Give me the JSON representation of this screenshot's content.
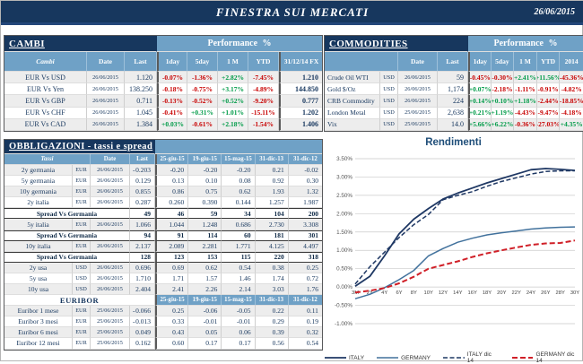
{
  "header": {
    "title": "FINESTRA SUI MERCATI",
    "date": "26/06/2015"
  },
  "colors": {
    "navy": "#17375E",
    "steel": "#6FA1C6",
    "positive": "#009B48",
    "negative": "#C80000",
    "stripe": "#EDEDED",
    "italy_line": "#1F3864",
    "germany_line": "#41719C",
    "germany_dic14_line": "#D02028"
  },
  "cambi": {
    "title": "CAMBI",
    "perf_header": "Performance  %",
    "columns": [
      "Cambi",
      "Date",
      "Last",
      "1day",
      "5day",
      "1 M",
      "YTD",
      "31/12/14 FX"
    ],
    "rows": [
      {
        "name": "EUR Vs USD",
        "date": "26/06/2015",
        "last": "1.120",
        "perf": [
          "-0.07%",
          "-1.36%",
          "+2.82%",
          "-7.45%"
        ],
        "fx": "1.210",
        "shade": true
      },
      {
        "name": "EUR Vs Yen",
        "date": "26/06/2015",
        "last": "138.250",
        "perf": [
          "-0.18%",
          "-0.75%",
          "+3.17%",
          "-4.89%"
        ],
        "fx": "144.850",
        "shade": false
      },
      {
        "name": "EUR Vs GBP",
        "date": "26/06/2015",
        "last": "0.711",
        "perf": [
          "-0.13%",
          "-0.52%",
          "+0.52%",
          "-9.20%"
        ],
        "fx": "0.777",
        "shade": true
      },
      {
        "name": "EUR Vs CHF",
        "date": "26/06/2015",
        "last": "1.045",
        "perf": [
          "-0.41%",
          "+0.31%",
          "+1.01%",
          "-15.11%"
        ],
        "fx": "1.202",
        "shade": false
      },
      {
        "name": "EUR Vs CAD",
        "date": "26/06/2015",
        "last": "1.384",
        "perf": [
          "+0.03%",
          "-0.61%",
          "+2.18%",
          "-1.54%"
        ],
        "fx": "1.406",
        "shade": true
      }
    ]
  },
  "commodities": {
    "title": "COMMODITIES",
    "perf_header": "Performance  %",
    "columns": [
      "",
      "Date",
      "Last",
      "1day",
      "5day",
      "1 M",
      "YTD",
      "2014"
    ],
    "rows": [
      {
        "name": "Crude Oil WTI",
        "ccy": "USD",
        "date": "26/06/2015",
        "last": "59",
        "perf": [
          "-0.45%",
          "-0.30%",
          "+2.41%",
          "+11.56%",
          "-45.36%"
        ],
        "shade": true
      },
      {
        "name": "Gold $/Oz",
        "ccy": "USD",
        "date": "26/06/2015",
        "last": "1,174",
        "perf": [
          "+0.07%",
          "-2.18%",
          "-1.11%",
          "-0.91%",
          "-4.82%"
        ],
        "shade": false
      },
      {
        "name": "CRB Commodity",
        "ccy": "USD",
        "date": "26/06/2015",
        "last": "224",
        "perf": [
          "+0.14%",
          "+0.10%",
          "+1.18%",
          "-2.44%",
          "-18.85%"
        ],
        "shade": true
      },
      {
        "name": "London Metal",
        "ccy": "USD",
        "date": "25/06/2015",
        "last": "2,638",
        "perf": [
          "+0.21%",
          "+1.19%",
          "-4.43%",
          "-9.47%",
          "-4.18%"
        ],
        "shade": false
      },
      {
        "name": "Vix",
        "ccy": "USD",
        "date": "25/06/2015",
        "last": "14.0",
        "perf": [
          "+5.66%",
          "+6.22%",
          "-0.36%",
          "-27.03%",
          "+4.35%"
        ],
        "shade": true
      }
    ]
  },
  "obbligazioni": {
    "title": "OBBLIGAZIONI - tassi e spread",
    "columns": [
      "Tassi",
      "Date",
      "Last",
      "25-giu-15",
      "19-giu-15",
      "15-mag-15",
      "31-dic-13",
      "31-dic-12"
    ],
    "rows": [
      {
        "type": "data",
        "name": "2y germania",
        "ccy": "EUR",
        "date": "26/06/2015",
        "sign": "-",
        "last": "0.203",
        "vals": [
          "-0.20",
          "-0.20",
          "-0.20",
          "0.21",
          "-0.02"
        ],
        "shade": true
      },
      {
        "type": "data",
        "name": "5y germania",
        "ccy": "EUR",
        "date": "26/06/2015",
        "sign": "",
        "last": "0.129",
        "vals": [
          "0.13",
          "0.10",
          "0.08",
          "0.92",
          "0.30"
        ],
        "shade": false
      },
      {
        "type": "data",
        "name": "10y germania",
        "ccy": "EUR",
        "date": "26/06/2015",
        "sign": "",
        "last": "0.855",
        "vals": [
          "0.86",
          "0.75",
          "0.62",
          "1.93",
          "1.32"
        ],
        "shade": true
      },
      {
        "type": "data",
        "name": "2y italia",
        "ccy": "EUR",
        "date": "26/06/2015",
        "sign": "",
        "last": "0.287",
        "vals": [
          "0.260",
          "0.390",
          "0.144",
          "1.257",
          "1.987"
        ],
        "shade": false
      },
      {
        "type": "spread",
        "name": "Spread Vs Germania",
        "last": "49",
        "vals": [
          "46",
          "59",
          "34",
          "104",
          "200"
        ]
      },
      {
        "type": "data",
        "name": "5y italia",
        "ccy": "EUR",
        "date": "26/06/2015",
        "sign": "",
        "last": "1.066",
        "vals": [
          "1.044",
          "1.248",
          "0.686",
          "2.730",
          "3.308"
        ],
        "shade": true
      },
      {
        "type": "spread",
        "name": "Spread Vs Germania",
        "last": "94",
        "vals": [
          "91",
          "114",
          "60",
          "181",
          "301"
        ]
      },
      {
        "type": "data",
        "name": "10y italia",
        "ccy": "EUR",
        "date": "26/06/2015",
        "sign": "",
        "last": "2.137",
        "vals": [
          "2.089",
          "2.281",
          "1.771",
          "4.125",
          "4.497"
        ],
        "shade": true
      },
      {
        "type": "spread",
        "name": "Spread Vs Germania",
        "last": "128",
        "vals": [
          "123",
          "153",
          "115",
          "220",
          "318"
        ]
      },
      {
        "type": "data",
        "name": "2y usa",
        "ccy": "USD",
        "date": "26/06/2015",
        "sign": "",
        "last": "0.696",
        "vals": [
          "0.69",
          "0.62",
          "0.54",
          "0.38",
          "0.25"
        ],
        "shade": true
      },
      {
        "type": "data",
        "name": "5y usa",
        "ccy": "USD",
        "date": "26/06/2015",
        "sign": "",
        "last": "1.710",
        "vals": [
          "1.71",
          "1.57",
          "1.46",
          "1.74",
          "0.72"
        ],
        "shade": false
      },
      {
        "type": "data",
        "name": "10y usa",
        "ccy": "USD",
        "date": "26/06/2015",
        "sign": "",
        "last": "2.404",
        "vals": [
          "2.41",
          "2.26",
          "2.14",
          "3.03",
          "1.76"
        ],
        "shade": true
      }
    ]
  },
  "euribor": {
    "title": "EURIBOR",
    "columns": [
      "25-giu-15",
      "19-giu-15",
      "15-mag-15",
      "31-dic-13",
      "31-dic-12"
    ],
    "rows": [
      {
        "name": "Euribor 1 mese",
        "ccy": "EUR",
        "date": "25/06/2015",
        "sign": "-",
        "last": "0.066",
        "vals": [
          "0.25",
          "-0.06",
          "-0.05",
          "0.22",
          "0.11"
        ],
        "shade": true
      },
      {
        "name": "Euribor 3 mesi",
        "ccy": "EUR",
        "date": "25/06/2015",
        "sign": "-",
        "last": "0.013",
        "vals": [
          "0.33",
          "-0.01",
          "-0.01",
          "0.29",
          "0.19"
        ],
        "shade": false
      },
      {
        "name": "Euribor 6 mesi",
        "ccy": "EUR",
        "date": "25/06/2015",
        "sign": "",
        "last": "0.049",
        "vals": [
          "0.43",
          "0.05",
          "0.06",
          "0.39",
          "0.32"
        ],
        "shade": true
      },
      {
        "name": "Euribor 12 mesi",
        "ccy": "EUR",
        "date": "25/06/2015",
        "sign": "",
        "last": "0.162",
        "vals": [
          "0.60",
          "0.17",
          "0.17",
          "0.56",
          "0.54"
        ],
        "shade": false
      }
    ]
  },
  "chart_data": {
    "type": "line",
    "title": "Rendimenti",
    "categories": [
      "3M",
      "2Y",
      "4Y",
      "6Y",
      "8Y",
      "10Y",
      "12Y",
      "14Y",
      "16Y",
      "18Y",
      "20Y",
      "22Y",
      "24Y",
      "26Y",
      "28Y",
      "30Y"
    ],
    "ylim": [
      -1.0,
      3.5
    ],
    "yticks": [
      "3.50%",
      "3.00%",
      "2.50%",
      "2.00%",
      "1.50%",
      "1.00%",
      "0.50%",
      "0.00%",
      "-0.50%",
      "-1.00%"
    ],
    "grid": true,
    "legend_position": "bottom",
    "series": [
      {
        "name": "ITALY",
        "color": "#1F3864",
        "dash": "",
        "width": 1.8,
        "values": [
          0.02,
          0.29,
          0.85,
          1.45,
          1.85,
          2.14,
          2.4,
          2.56,
          2.7,
          2.84,
          2.96,
          3.08,
          3.2,
          3.23,
          3.21,
          3.18
        ]
      },
      {
        "name": "GERMANY",
        "color": "#41719C",
        "dash": "",
        "width": 1.5,
        "values": [
          -0.32,
          -0.2,
          -0.02,
          0.2,
          0.45,
          0.85,
          1.05,
          1.22,
          1.33,
          1.42,
          1.48,
          1.53,
          1.58,
          1.61,
          1.63,
          1.64
        ]
      },
      {
        "name": "ITALY dic 14",
        "color": "#1F3864",
        "dash": "5,2.5",
        "width": 1.5,
        "values": [
          0.08,
          0.55,
          0.95,
          1.35,
          1.7,
          1.98,
          2.38,
          2.5,
          2.6,
          2.75,
          2.88,
          2.98,
          3.08,
          3.15,
          3.17,
          3.17
        ]
      },
      {
        "name": "GERMANY dic 14",
        "color": "#D02028",
        "dash": "6,3",
        "width": 2,
        "values": [
          -0.15,
          -0.1,
          -0.03,
          0.1,
          0.28,
          0.5,
          0.6,
          0.7,
          0.82,
          0.92,
          1.0,
          1.08,
          1.15,
          1.19,
          1.2,
          1.27
        ]
      }
    ]
  }
}
